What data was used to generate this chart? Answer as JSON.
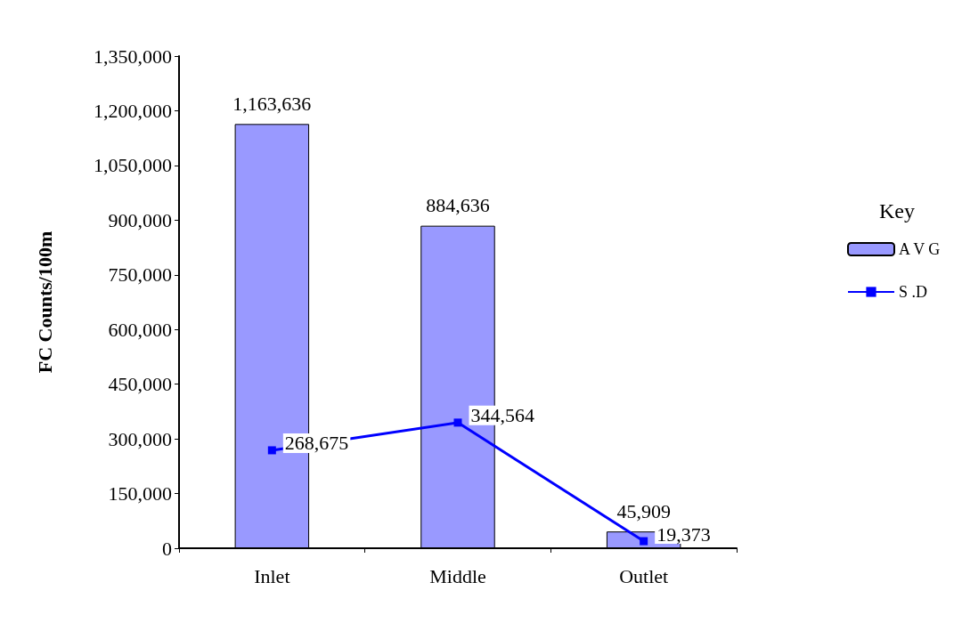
{
  "chart_data": {
    "type": "bar",
    "ylabel": "FC Counts/100m",
    "legend_title": "Key",
    "categories": [
      "Inlet",
      "Middle",
      "Outlet"
    ],
    "series": [
      {
        "name": "A V G",
        "color": "#9999ff",
        "values": [
          1163636,
          884636,
          45909
        ],
        "value_labels": [
          "1,163,636",
          "884,636",
          "45,909"
        ]
      },
      {
        "name": "S .D",
        "type": "line",
        "color": "#0000ff",
        "marker": "square",
        "values": [
          268675,
          344564,
          19373
        ],
        "value_labels": [
          "268,675",
          "344,564",
          "19,373"
        ]
      }
    ],
    "ylim": [
      0,
      1350000
    ],
    "yticks": [
      {
        "value": 0,
        "label": "0"
      },
      {
        "value": 150000,
        "label": "150,000"
      },
      {
        "value": 300000,
        "label": "300,000"
      },
      {
        "value": 450000,
        "label": "450,000"
      },
      {
        "value": 600000,
        "label": "600,000"
      },
      {
        "value": 750000,
        "label": "750,000"
      },
      {
        "value": 900000,
        "label": "900,000"
      },
      {
        "value": 1050000,
        "label": "1,050,000"
      },
      {
        "value": 1200000,
        "label": "1,200,000"
      },
      {
        "value": 1350000,
        "label": "1,350,000"
      }
    ],
    "grid": false,
    "legend": "right"
  }
}
